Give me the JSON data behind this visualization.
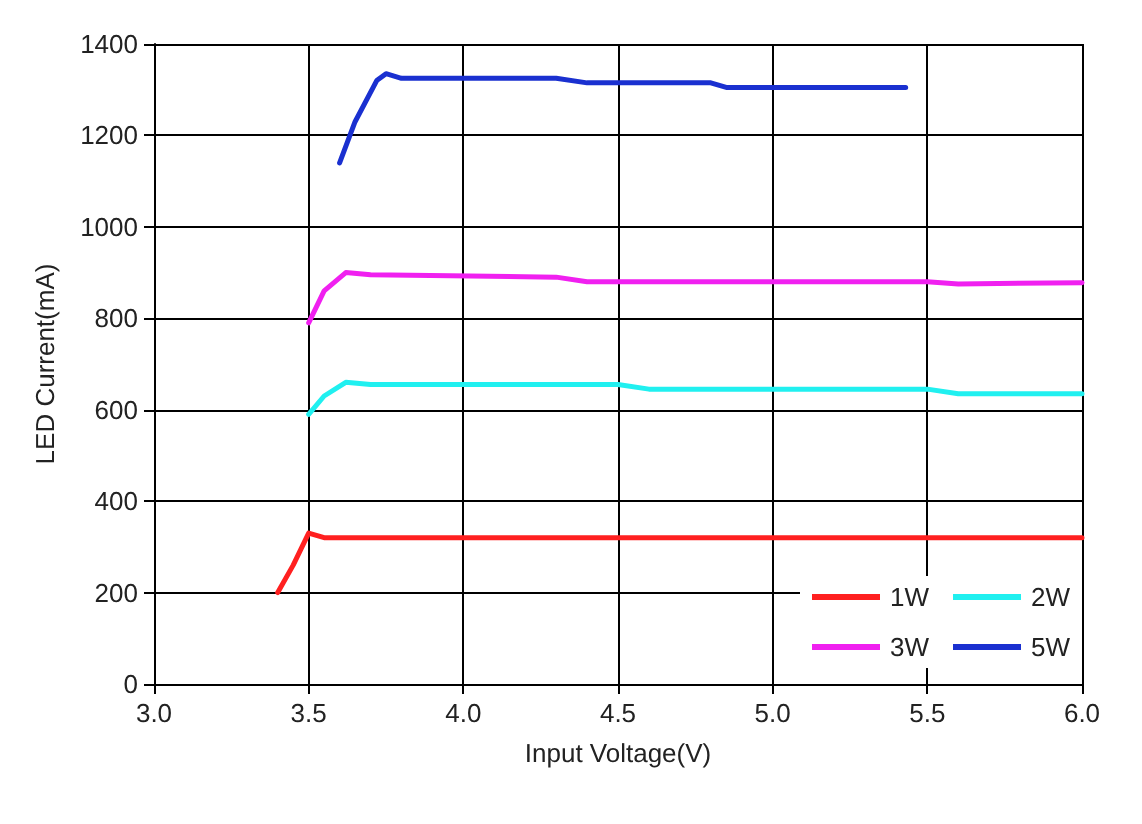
{
  "chart_data": {
    "type": "line",
    "xlabel": "Input Voltage(V)",
    "ylabel": "LED Current(mA)",
    "xlim": [
      3.0,
      6.0
    ],
    "xticks": [
      {
        "value": 3,
        "label": "3.0"
      },
      3.5,
      {
        "value": 4,
        "label": "4.0"
      },
      4.5,
      {
        "value": 5,
        "label": "5.0"
      },
      5.5,
      {
        "value": 6,
        "label": "6.0"
      }
    ],
    "ylim": [
      0,
      1400
    ],
    "yticks": [
      0,
      200,
      400,
      600,
      800,
      1000,
      1200,
      1400
    ],
    "grid": true,
    "legend": "bottom right",
    "marker": "none",
    "line_style": "solid",
    "series": [
      {
        "name": "1W",
        "color": "#ff2020",
        "x": [
          3.4,
          3.45,
          3.5,
          3.55,
          3.7,
          4.5,
          5.5,
          6.0
        ],
        "values": [
          200,
          260,
          330,
          320,
          320,
          320,
          320,
          320
        ]
      },
      {
        "name": "2W",
        "color": "#20f0f0",
        "x": [
          3.5,
          3.55,
          3.62,
          3.7,
          4.5,
          4.6,
          5.5,
          5.6,
          6.0
        ],
        "values": [
          590,
          630,
          660,
          655,
          655,
          645,
          645,
          635,
          635
        ]
      },
      {
        "name": "3W",
        "color": "#f020f0",
        "x": [
          3.5,
          3.55,
          3.62,
          3.7,
          4.3,
          4.4,
          5.5,
          5.6,
          6.0
        ],
        "values": [
          790,
          860,
          900,
          895,
          890,
          880,
          880,
          875,
          878
        ]
      },
      {
        "name": "5W",
        "color": "#1a30d0",
        "x": [
          3.6,
          3.65,
          3.72,
          3.75,
          3.8,
          4.3,
          4.4,
          4.8,
          4.85,
          5.43
        ],
        "values": [
          1140,
          1230,
          1320,
          1335,
          1325,
          1325,
          1315,
          1315,
          1305,
          1305
        ]
      }
    ]
  }
}
